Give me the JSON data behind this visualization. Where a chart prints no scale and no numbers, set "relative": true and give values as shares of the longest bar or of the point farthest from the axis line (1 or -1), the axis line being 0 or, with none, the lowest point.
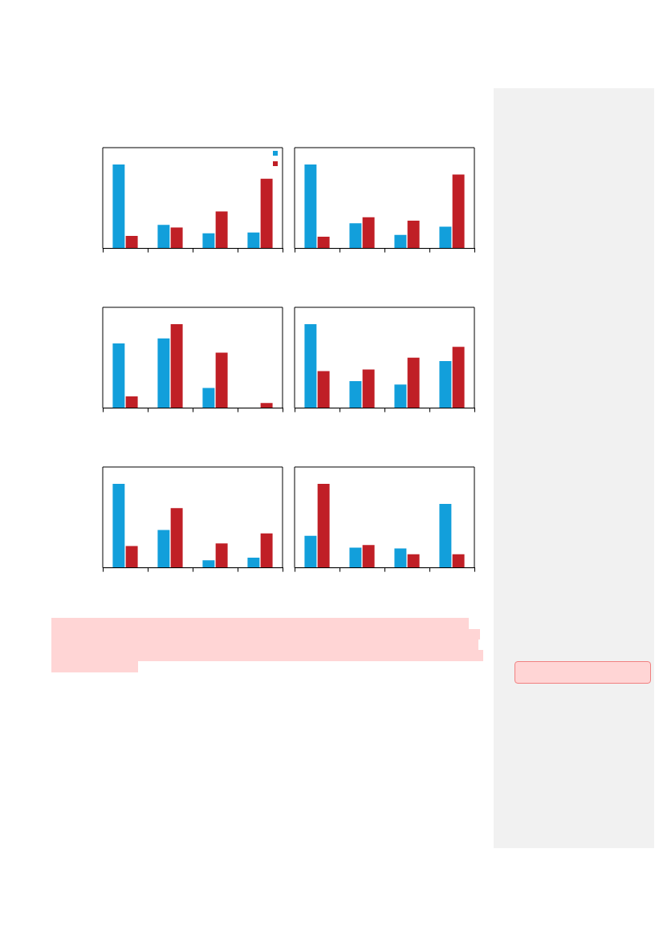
{
  "chart_data": [
    {
      "type": "bar",
      "relative": true,
      "categories": [
        null,
        null,
        null,
        null
      ],
      "series": [
        {
          "color": "#129fdb",
          "values": [
            1,
            0.28,
            0.18,
            0.19
          ]
        },
        {
          "color": "#c01f26",
          "values": [
            0.15,
            0.25,
            0.44,
            0.83
          ]
        }
      ]
    },
    {
      "type": "bar",
      "relative": true,
      "categories": [
        null,
        null,
        null,
        null
      ],
      "series": [
        {
          "color": "#129fdb",
          "values": [
            1,
            0.3,
            0.16,
            0.26
          ]
        },
        {
          "color": "#c01f26",
          "values": [
            0.14,
            0.37,
            0.33,
            0.88
          ]
        }
      ]
    },
    {
      "type": "bar",
      "relative": true,
      "categories": [
        null,
        null,
        null,
        null
      ],
      "series": [
        {
          "color": "#129fdb",
          "values": [
            0.77,
            0.83,
            0.24,
            0
          ]
        },
        {
          "color": "#c01f26",
          "values": [
            0.14,
            1,
            0.66,
            0.06
          ]
        }
      ]
    },
    {
      "type": "bar",
      "relative": true,
      "categories": [
        null,
        null,
        null,
        null
      ],
      "series": [
        {
          "color": "#129fdb",
          "values": [
            1,
            0.32,
            0.28,
            0.56
          ]
        },
        {
          "color": "#c01f26",
          "values": [
            0.44,
            0.46,
            0.6,
            0.73
          ]
        }
      ]
    },
    {
      "type": "bar",
      "relative": true,
      "categories": [
        null,
        null,
        null,
        null
      ],
      "series": [
        {
          "color": "#129fdb",
          "values": [
            1,
            0.45,
            0.09,
            0.12
          ]
        },
        {
          "color": "#c01f26",
          "values": [
            0.26,
            0.71,
            0.29,
            0.41
          ]
        }
      ]
    },
    {
      "type": "bar",
      "relative": true,
      "categories": [
        null,
        null,
        null,
        null
      ],
      "series": [
        {
          "color": "#129fdb",
          "values": [
            0.38,
            0.24,
            0.23,
            0.76
          ]
        },
        {
          "color": "#c01f26",
          "values": [
            1,
            0.27,
            0.16,
            0.16
          ]
        }
      ]
    }
  ]
}
